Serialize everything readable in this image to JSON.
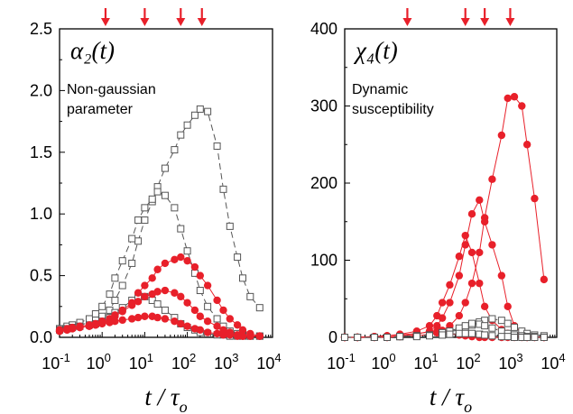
{
  "chart_data": [
    {
      "type": "scatter",
      "panel_label": "α₂(t)",
      "annotation": [
        "Non-gaussian",
        "parameter"
      ],
      "xlabel": "t / τ",
      "xlabel_sub": "o",
      "x_scale": "log",
      "xlim": [
        0.1,
        10000
      ],
      "ylim": [
        0,
        2.5
      ],
      "x_ticks": [
        0.1,
        1,
        10,
        100,
        1000,
        10000
      ],
      "x_tick_labels": [
        [
          "10",
          "-1"
        ],
        [
          "10",
          "0"
        ],
        [
          "10",
          "1"
        ],
        [
          "10",
          "2"
        ],
        [
          "10",
          "3"
        ],
        [
          "10",
          "4"
        ]
      ],
      "y_ticks": [
        0,
        0.5,
        1.0,
        1.5,
        2.0,
        2.5
      ],
      "y_tick_labels": [
        "0.0",
        "0.5",
        "1.0",
        "1.5",
        "2.0",
        "2.5"
      ],
      "arrows_x": [
        1.2,
        10,
        70,
        220
      ],
      "series": [
        {
          "marker": "open-square",
          "line": "dashed",
          "color": "#555555",
          "x": [
            0.1,
            0.15,
            0.2,
            0.3,
            0.5,
            0.7,
            1,
            1.5,
            2,
            3,
            5,
            7,
            10,
            15,
            20,
            30,
            50,
            70,
            100,
            150,
            200,
            300,
            500,
            700,
            1000,
            1500,
            2000,
            3000,
            5000
          ],
          "y": [
            0.07,
            0.08,
            0.09,
            0.1,
            0.12,
            0.14,
            0.17,
            0.22,
            0.3,
            0.42,
            0.6,
            0.78,
            0.95,
            1.1,
            1.22,
            1.37,
            1.52,
            1.64,
            1.72,
            1.8,
            1.85,
            1.83,
            1.55,
            1.2,
            0.9,
            0.65,
            0.48,
            0.33,
            0.24
          ]
        },
        {
          "marker": "open-square",
          "line": "dashed",
          "color": "#555555",
          "x": [
            0.1,
            0.15,
            0.2,
            0.3,
            0.5,
            0.7,
            1,
            1.5,
            2,
            3,
            5,
            7,
            10,
            15,
            20,
            30,
            50,
            70,
            100,
            150,
            200,
            300,
            500,
            700,
            1000,
            1500,
            2000,
            3000,
            5000
          ],
          "y": [
            0.07,
            0.09,
            0.1,
            0.12,
            0.15,
            0.19,
            0.25,
            0.35,
            0.48,
            0.62,
            0.8,
            0.95,
            1.05,
            1.12,
            1.18,
            1.15,
            1.05,
            0.88,
            0.7,
            0.52,
            0.38,
            0.25,
            0.15,
            0.09,
            0.05,
            0.03,
            0.02,
            0.01,
            0.01
          ]
        },
        {
          "marker": "open-square",
          "line": "dashed",
          "color": "#555555",
          "x": [
            0.1,
            0.15,
            0.2,
            0.3,
            0.5,
            0.7,
            1,
            1.5,
            2,
            3,
            5,
            7,
            10,
            15,
            20,
            30,
            50,
            70,
            100,
            150,
            200,
            300,
            500,
            700,
            1000,
            1500,
            2000,
            3000,
            5000
          ],
          "y": [
            0.06,
            0.07,
            0.08,
            0.09,
            0.1,
            0.11,
            0.13,
            0.16,
            0.2,
            0.24,
            0.3,
            0.32,
            0.33,
            0.3,
            0.27,
            0.22,
            0.16,
            0.11,
            0.08,
            0.06,
            0.04,
            0.03,
            0.02,
            0.02,
            0.01,
            0.01,
            0.01,
            0.01,
            0.01
          ]
        },
        {
          "marker": "filled-circle",
          "line": "solid",
          "color": "#e8202a",
          "x": [
            0.1,
            0.15,
            0.2,
            0.3,
            0.5,
            0.7,
            1,
            1.5,
            2,
            3,
            5,
            7,
            10,
            15,
            20,
            30,
            50,
            70,
            100,
            150,
            200,
            300,
            500,
            700,
            1000,
            1500,
            2000,
            3000,
            5000
          ],
          "y": [
            0.06,
            0.07,
            0.08,
            0.09,
            0.1,
            0.11,
            0.13,
            0.15,
            0.18,
            0.22,
            0.28,
            0.36,
            0.42,
            0.48,
            0.55,
            0.6,
            0.63,
            0.65,
            0.62,
            0.57,
            0.5,
            0.42,
            0.3,
            0.22,
            0.15,
            0.1,
            0.06,
            0.03,
            0.01
          ]
        },
        {
          "marker": "filled-circle",
          "line": "solid",
          "color": "#e8202a",
          "x": [
            0.1,
            0.15,
            0.2,
            0.3,
            0.5,
            0.7,
            1,
            1.5,
            2,
            3,
            5,
            7,
            10,
            15,
            20,
            30,
            50,
            70,
            100,
            150,
            200,
            300,
            500,
            700,
            1000,
            1500,
            2000,
            3000,
            5000
          ],
          "y": [
            0.05,
            0.06,
            0.07,
            0.08,
            0.09,
            0.1,
            0.12,
            0.14,
            0.17,
            0.21,
            0.26,
            0.29,
            0.33,
            0.35,
            0.37,
            0.38,
            0.36,
            0.33,
            0.28,
            0.22,
            0.17,
            0.13,
            0.09,
            0.06,
            0.04,
            0.02,
            0.01,
            0.01,
            0.01
          ]
        },
        {
          "marker": "filled-circle",
          "line": "solid",
          "color": "#e8202a",
          "x": [
            0.1,
            0.15,
            0.2,
            0.3,
            0.5,
            0.7,
            1,
            1.5,
            2,
            3,
            5,
            7,
            10,
            15,
            20,
            30,
            50,
            70,
            100,
            150,
            200,
            300,
            500,
            700,
            1000,
            1500,
            2000,
            3000,
            5000
          ],
          "y": [
            0.05,
            0.06,
            0.07,
            0.08,
            0.09,
            0.1,
            0.11,
            0.12,
            0.13,
            0.14,
            0.15,
            0.16,
            0.17,
            0.17,
            0.16,
            0.15,
            0.13,
            0.11,
            0.09,
            0.07,
            0.06,
            0.04,
            0.03,
            0.02,
            0.02,
            0.01,
            0.01,
            0.01,
            0.01
          ]
        }
      ]
    },
    {
      "type": "scatter",
      "panel_label": "χ₄(t)",
      "annotation": [
        "Dynamic",
        "susceptibility"
      ],
      "xlabel": "t / τ",
      "xlabel_sub": "o",
      "x_scale": "log",
      "xlim": [
        0.1,
        10000
      ],
      "ylim": [
        0,
        400
      ],
      "x_ticks": [
        0.1,
        1,
        10,
        100,
        1000,
        10000
      ],
      "x_tick_labels": [
        [
          "10",
          "-1"
        ],
        [
          "10",
          "0"
        ],
        [
          "10",
          "1"
        ],
        [
          "10",
          "2"
        ],
        [
          "10",
          "3"
        ],
        [
          "10",
          "4"
        ]
      ],
      "y_ticks": [
        0,
        100,
        200,
        300,
        400
      ],
      "y_tick_labels": [
        "0",
        "100",
        "200",
        "300",
        "400"
      ],
      "arrows_x": [
        3,
        70,
        200,
        800
      ],
      "series": [
        {
          "marker": "filled-circle",
          "line": "solid",
          "color": "#e8202a",
          "x": [
            0.1,
            0.2,
            0.5,
            1,
            2,
            5,
            10,
            15,
            20,
            30,
            50,
            70,
            100,
            150,
            200,
            300,
            500,
            700,
            1000,
            1500,
            2000,
            3000,
            5000
          ],
          "y": [
            0,
            0,
            0,
            0,
            1,
            2,
            4,
            6,
            9,
            15,
            28,
            45,
            70,
            110,
            155,
            205,
            262,
            310,
            312,
            300,
            250,
            180,
            75
          ]
        },
        {
          "marker": "filled-circle",
          "line": "solid",
          "color": "#e8202a",
          "x": [
            0.1,
            0.2,
            0.5,
            1,
            2,
            5,
            10,
            15,
            20,
            30,
            50,
            70,
            100,
            150,
            200,
            300,
            500,
            700,
            1000,
            1500,
            2000,
            3000,
            5000
          ],
          "y": [
            0,
            0,
            0,
            0,
            2,
            4,
            8,
            15,
            25,
            45,
            80,
            120,
            160,
            178,
            150,
            120,
            80,
            40,
            15,
            5,
            2,
            1,
            0
          ]
        },
        {
          "marker": "filled-circle",
          "line": "solid",
          "color": "#e8202a",
          "x": [
            0.1,
            0.2,
            0.5,
            1,
            2,
            5,
            10,
            15,
            20,
            30,
            50,
            70,
            100,
            150,
            200,
            300,
            500,
            700,
            1000,
            1500,
            2000,
            3000,
            5000
          ],
          "y": [
            0,
            0,
            1,
            2,
            4,
            8,
            15,
            28,
            45,
            68,
            105,
            132,
            110,
            70,
            40,
            22,
            10,
            5,
            2,
            1,
            0,
            0,
            0
          ]
        },
        {
          "marker": "filled-circle",
          "line": "solid",
          "color": "#e8202a",
          "x": [
            0.1,
            0.2,
            0.5,
            1,
            2,
            5,
            10,
            15,
            20,
            30,
            50,
            70,
            100,
            150,
            200,
            300,
            500,
            700,
            1000,
            1500,
            2000,
            3000,
            5000
          ],
          "y": [
            0,
            0,
            1,
            2,
            3,
            5,
            7,
            8,
            7,
            5,
            3,
            2,
            1,
            0,
            0,
            0,
            0,
            0,
            0,
            0,
            0,
            0,
            0
          ]
        },
        {
          "marker": "open-square",
          "line": "dashed",
          "color": "#555555",
          "x": [
            0.1,
            0.2,
            0.5,
            1,
            2,
            5,
            10,
            20,
            30,
            50,
            70,
            100,
            150,
            200,
            300,
            500,
            700,
            1000,
            1500,
            2000,
            3000,
            5000
          ],
          "y": [
            0,
            0,
            0,
            0,
            1,
            2,
            3,
            5,
            7,
            10,
            13,
            16,
            20,
            22,
            24,
            22,
            18,
            13,
            8,
            5,
            3,
            2
          ]
        },
        {
          "marker": "open-square",
          "line": "dashed",
          "color": "#555555",
          "x": [
            0.1,
            0.2,
            0.5,
            1,
            2,
            5,
            10,
            20,
            30,
            50,
            70,
            100,
            150,
            200,
            300,
            500,
            700,
            1000,
            1500,
            2000,
            3000,
            5000
          ],
          "y": [
            0,
            0,
            0,
            0,
            1,
            2,
            3,
            6,
            8,
            12,
            15,
            18,
            17,
            15,
            12,
            8,
            5,
            3,
            2,
            1,
            1,
            0
          ]
        },
        {
          "marker": "open-square",
          "line": "dashed",
          "color": "#555555",
          "x": [
            0.1,
            0.2,
            0.5,
            1,
            2,
            5,
            10,
            20,
            30,
            50,
            70,
            100,
            150,
            200,
            300,
            500,
            700,
            1000,
            1500,
            2000,
            3000,
            5000
          ],
          "y": [
            0,
            0,
            0,
            0,
            1,
            1,
            2,
            3,
            4,
            5,
            5,
            5,
            4,
            3,
            2,
            1,
            1,
            0,
            0,
            0,
            0,
            0
          ]
        }
      ]
    }
  ],
  "colors": {
    "accent": "#e8202a",
    "open_marker": "#555555",
    "axis": "#000000"
  }
}
